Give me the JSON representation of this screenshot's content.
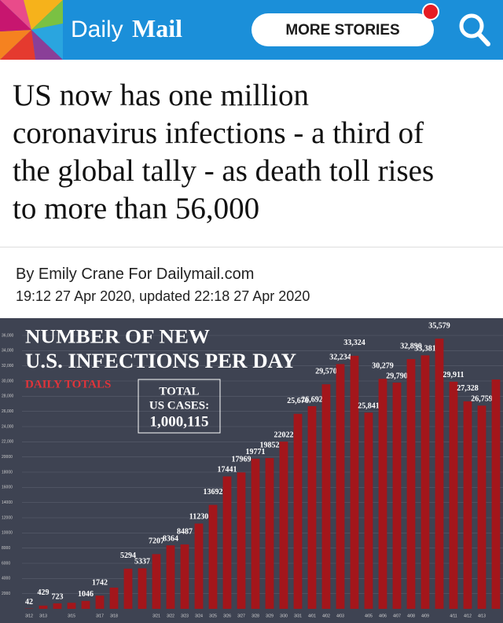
{
  "header": {
    "brand_light": "Daily",
    "brand_bold": "Mail",
    "button": "MORE STORIES"
  },
  "article": {
    "headline_lines": [
      "US now has one million",
      "coronavirus infections - a third of",
      "the global tally - as death toll rises",
      "to more than 56,000"
    ],
    "byline": "By Emily Crane For Dailymail.com",
    "dateline": "19:12 27 Apr 2020, updated 22:18 27 Apr 2020"
  },
  "chart_data": {
    "type": "bar",
    "title_lines": [
      "NUMBER OF NEW",
      "U.S. INFECTIONS PER DAY"
    ],
    "subtitle": "DAILY TOTALS",
    "total_box": [
      "TOTAL",
      "US CASES:",
      "1,000,115"
    ],
    "categories": [
      "3/12",
      "3/13",
      null,
      "3/15",
      null,
      "3/17",
      "3/18",
      null,
      null,
      "3/21",
      "3/22",
      "3/23",
      "3/24",
      "3/25",
      "3/26",
      "3/27",
      "3/28",
      "3/29",
      "3/30",
      "3/31",
      "4/01",
      "4/02",
      "4/03",
      null,
      "4/05",
      "4/06",
      "4/07",
      "4/08",
      "4/09",
      null,
      "4/11",
      "4/12",
      "4/13",
      null
    ],
    "values": [
      42,
      429,
      723,
      800,
      1046,
      1742,
      2800,
      5294,
      5337,
      7207,
      8364,
      8487,
      11230,
      13692,
      17441,
      17969,
      19771,
      19852,
      22022,
      25676,
      26692,
      29570,
      32234,
      33324,
      25841,
      30279,
      29790,
      32890,
      33381,
      35579,
      29911,
      27328,
      26759,
      30200
    ],
    "value_labels": [
      "42",
      "429",
      "723",
      null,
      "1046",
      "1742",
      null,
      "5294",
      "5337",
      "7207",
      "8364",
      "8487",
      "11230",
      "13692",
      "17441",
      "17969",
      "19771",
      "19852",
      "22022",
      "25,676",
      "26,692",
      "29,570",
      "32,234",
      "33,324",
      "25,841",
      "30,279",
      "29,790",
      "32,890",
      "33,381",
      "35,579",
      "29,911",
      "27,328",
      "26,759",
      null
    ],
    "color": "#a3161b",
    "ylim": [
      0,
      36000
    ],
    "yticks": [
      2000,
      4000,
      6000,
      8000,
      10000,
      12000,
      14000,
      16000,
      18000,
      20000,
      {
        "value": 22000,
        "label": "22,000"
      },
      {
        "value": 24000,
        "label": "24,000"
      },
      {
        "value": 26000,
        "label": "26,000"
      },
      {
        "value": 28000,
        "label": "28,000"
      },
      {
        "value": 30000,
        "label": "30,000"
      },
      {
        "value": 32000,
        "label": "32,000"
      },
      {
        "value": 34000,
        "label": "34,000"
      },
      {
        "value": 36000,
        "label": "36,000"
      }
    ],
    "grid": true
  }
}
